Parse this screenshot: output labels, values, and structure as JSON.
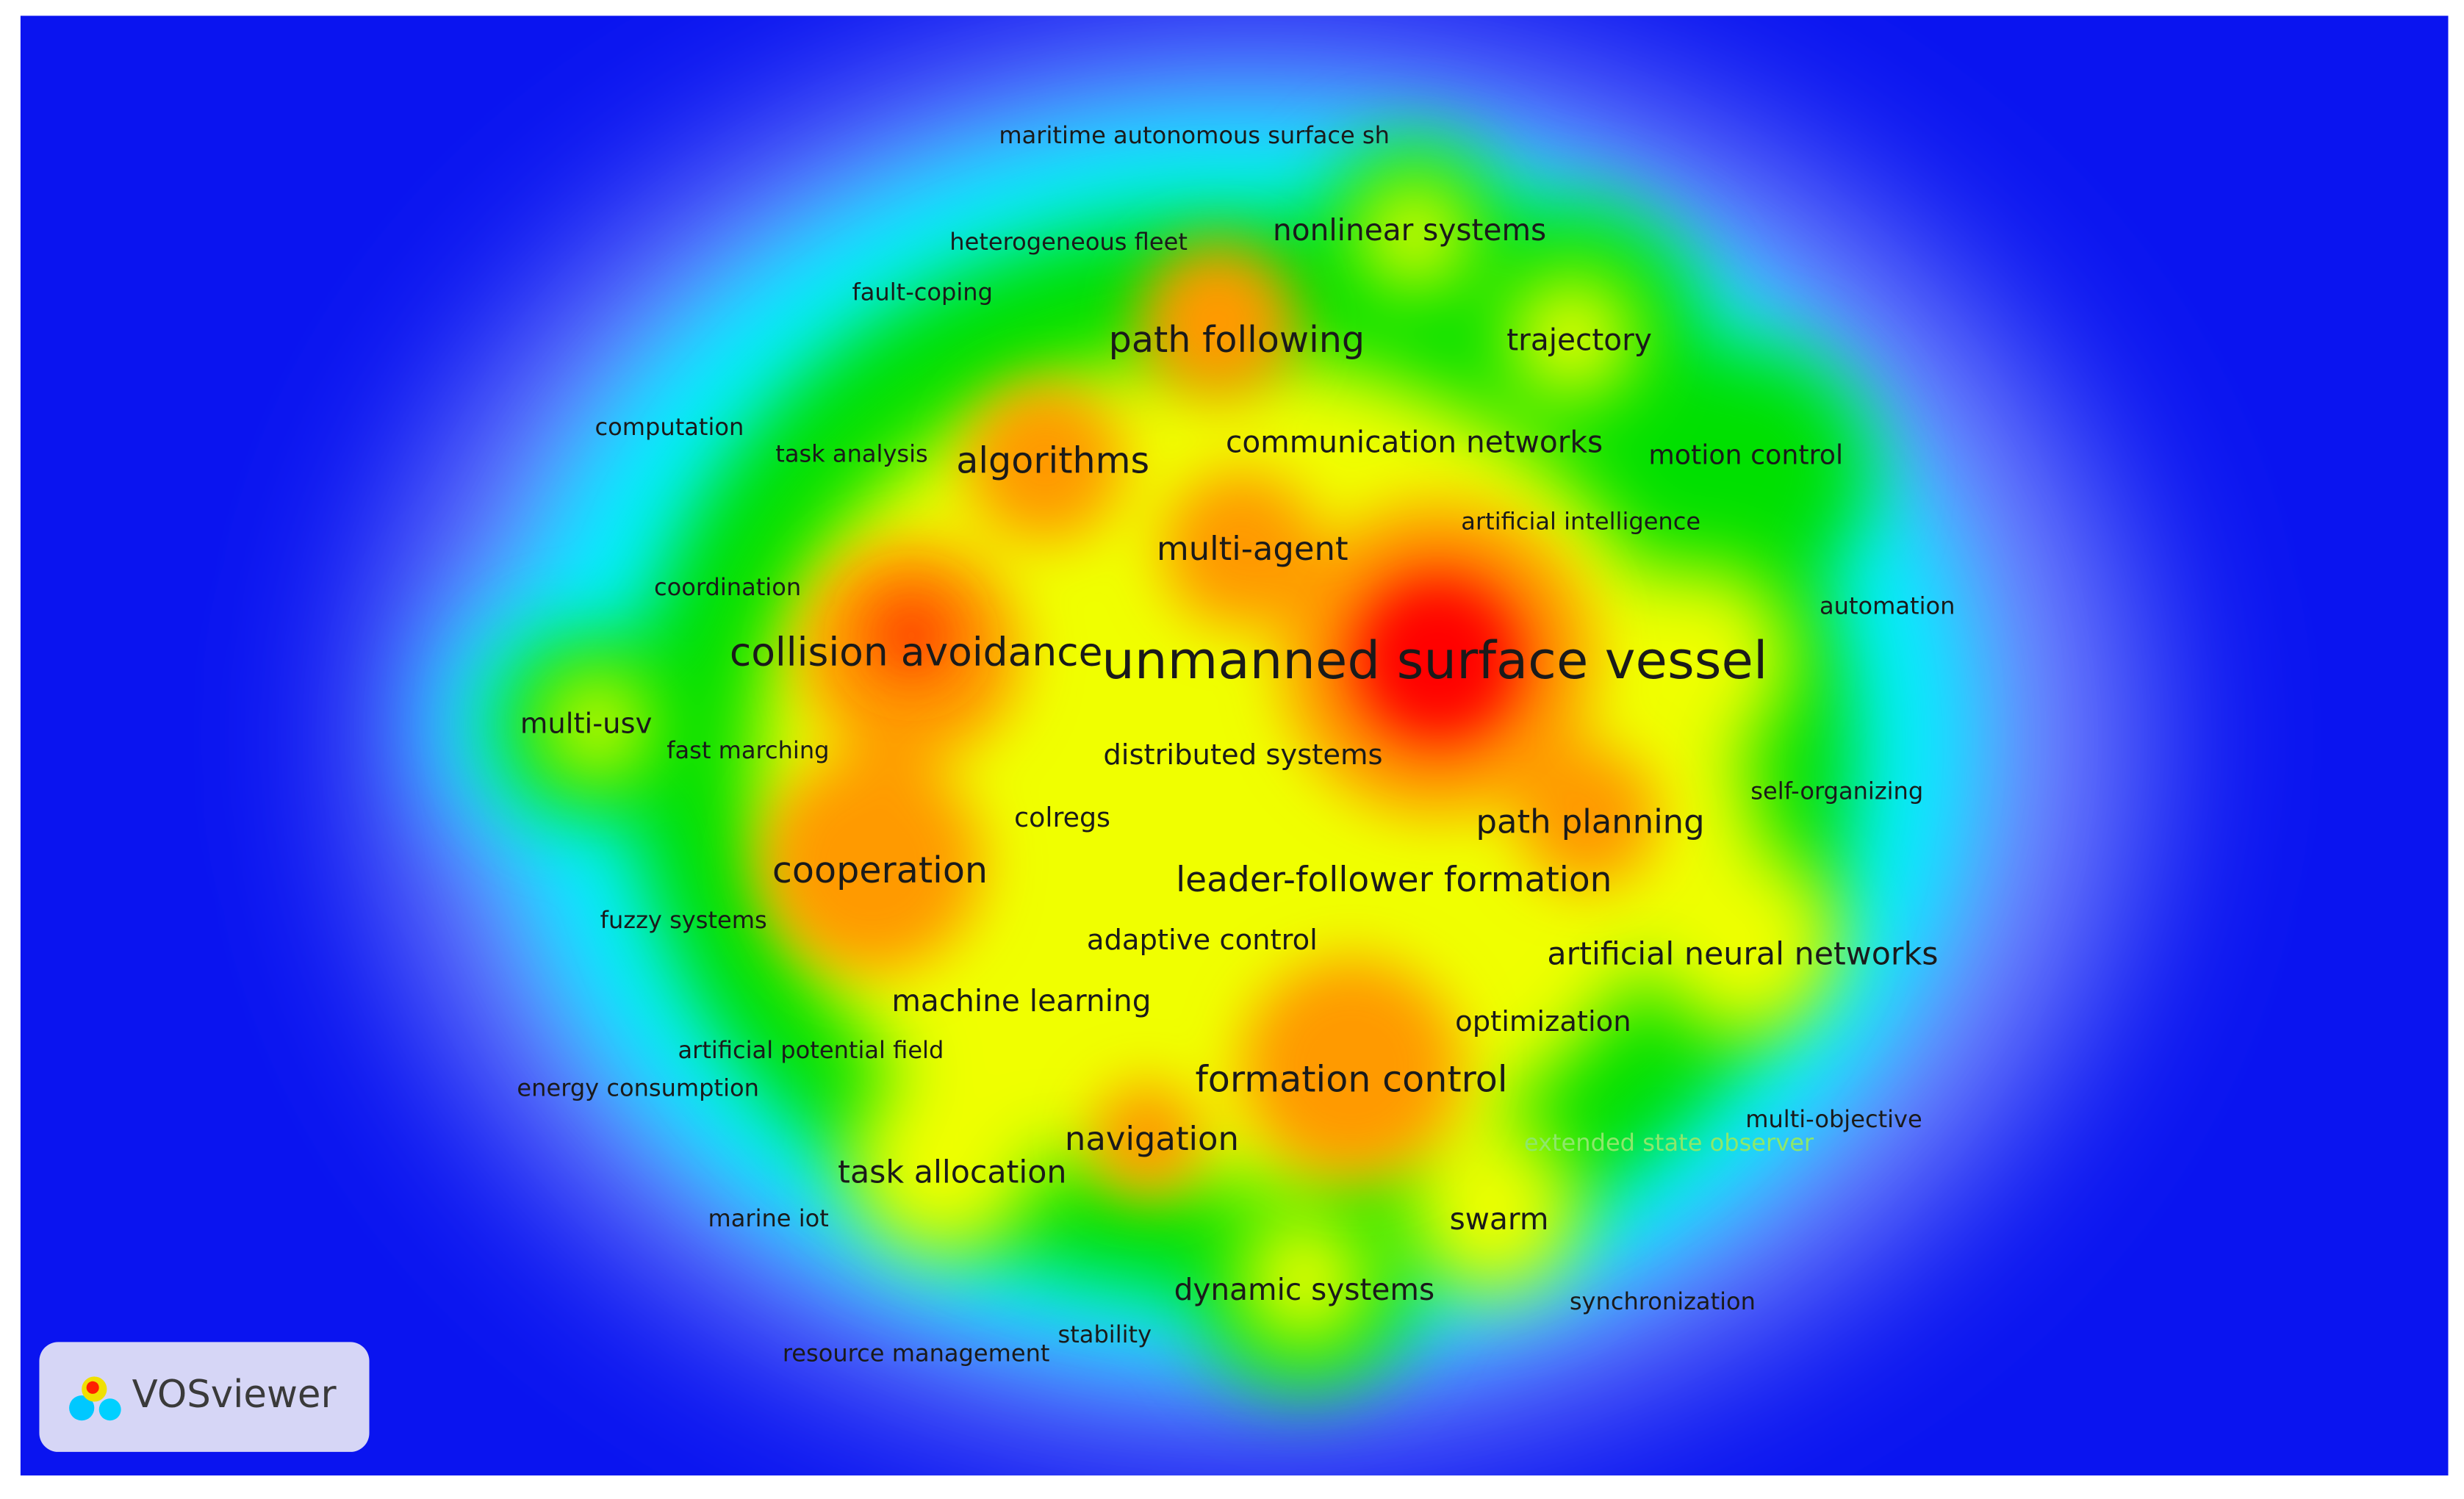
{
  "keywords": [
    "maritime autonomous surface sh",
    "heterogeneous fleet",
    "nonlinear systems",
    "fault-coping",
    "path following",
    "trajectory",
    "computation",
    "task analysis",
    "algorithms",
    "communication networks",
    "motion control",
    "artificial intelligence",
    "multi-agent",
    "coordination",
    "automation",
    "collision avoidance",
    "unmanned surface vessel",
    "multi-usv",
    "fast marching",
    "distributed systems",
    "self-organizing",
    "colregs",
    "path planning",
    "cooperation",
    "leader-follower formation",
    "fuzzy systems",
    "adaptive control",
    "artificial neural networks",
    "machine learning",
    "optimization",
    "artificial potential field",
    "formation control",
    "energy consumption",
    "multi-objective",
    "extended state observer",
    "navigation",
    "task allocation",
    "marine iot",
    "swarm",
    "dynamic systems",
    "synchronization",
    "stability",
    "resource management"
  ],
  "logo": "VOSviewer"
}
